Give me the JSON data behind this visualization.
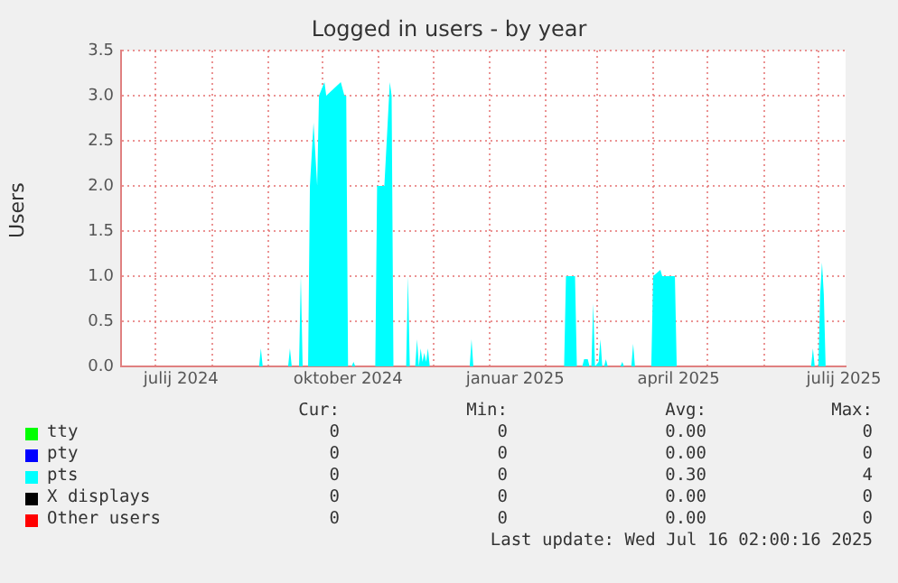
{
  "chart_data": {
    "type": "area",
    "title": "Logged in users - by year",
    "ylabel": "Users",
    "xlim": [
      "2024-06-12",
      "2025-07-16"
    ],
    "xticks": [
      {
        "value": "2024-07-01",
        "label": null
      },
      {
        "value": "2024-07-15",
        "label": "julij 2024"
      },
      {
        "value": "2024-08-01",
        "label": null
      },
      {
        "value": "2024-09-01",
        "label": null
      },
      {
        "value": "2024-10-01",
        "label": null
      },
      {
        "value": "2024-10-15",
        "label": "oktober 2024"
      },
      {
        "value": "2024-11-01",
        "label": null
      },
      {
        "value": "2024-12-01",
        "label": null
      },
      {
        "value": "2025-01-01",
        "label": null
      },
      {
        "value": "2025-01-15",
        "label": "januar 2025"
      },
      {
        "value": "2025-02-01",
        "label": null
      },
      {
        "value": "2025-03-01",
        "label": null
      },
      {
        "value": "2025-04-01",
        "label": null
      },
      {
        "value": "2025-04-15",
        "label": "april 2025"
      },
      {
        "value": "2025-05-01",
        "label": null
      },
      {
        "value": "2025-06-01",
        "label": null
      },
      {
        "value": "2025-07-01",
        "label": null
      },
      {
        "value": "2025-07-15",
        "label": "julij 2025"
      }
    ],
    "ylim": [
      0,
      3.5
    ],
    "yticks": [
      {
        "value": 0,
        "label": "0.0"
      },
      {
        "value": 0.5,
        "label": "0.5"
      },
      {
        "value": 1,
        "label": "1.0"
      },
      {
        "value": 1.5,
        "label": "1.5"
      },
      {
        "value": 2,
        "label": "2.0"
      },
      {
        "value": 2.5,
        "label": "2.5"
      },
      {
        "value": 3,
        "label": "3.0"
      },
      {
        "value": 3.5,
        "label": "3.5"
      }
    ],
    "grid": true,
    "legend": "bottom",
    "series": [
      {
        "name": "tty",
        "color": "#00ff00"
      },
      {
        "name": "pty",
        "color": "#0000ff"
      },
      {
        "name": "pts",
        "color": "#00ffff",
        "x": [
          "2024-06-12",
          "2024-08-27",
          "2024-08-28",
          "2024-08-29",
          "2024-09-12",
          "2024-09-13",
          "2024-09-14",
          "2024-09-18",
          "2024-09-19",
          "2024-09-20",
          "2024-09-23",
          "2024-09-24",
          "2024-09-26",
          "2024-09-28",
          "2024-09-29",
          "2024-10-02",
          "2024-10-03",
          "2024-10-11",
          "2024-10-13",
          "2024-10-14",
          "2024-10-15",
          "2024-10-17",
          "2024-10-18",
          "2024-10-19",
          "2024-10-30",
          "2024-10-31",
          "2024-11-04",
          "2024-11-07",
          "2024-11-08",
          "2024-11-09",
          "2024-11-16",
          "2024-11-17",
          "2024-11-18",
          "2024-11-21",
          "2024-11-22",
          "2024-11-23",
          "2024-11-24",
          "2024-11-25",
          "2024-11-26",
          "2024-11-27",
          "2024-11-28",
          "2024-11-29",
          "2024-12-21",
          "2024-12-22",
          "2024-12-23",
          "2025-02-11",
          "2025-02-12",
          "2025-02-17",
          "2025-02-18",
          "2025-02-21",
          "2025-02-22",
          "2025-02-24",
          "2025-02-25",
          "2025-02-26",
          "2025-02-27",
          "2025-02-28",
          "2025-03-02",
          "2025-03-03",
          "2025-03-04",
          "2025-03-05",
          "2025-03-06",
          "2025-03-07",
          "2025-03-14",
          "2025-03-15",
          "2025-03-16",
          "2025-03-20",
          "2025-03-21",
          "2025-03-22",
          "2025-03-31",
          "2025-04-01",
          "2025-04-05",
          "2025-04-06",
          "2025-04-13",
          "2025-04-14",
          "2025-06-27",
          "2025-06-28",
          "2025-06-29",
          "2025-07-01",
          "2025-07-02",
          "2025-07-03",
          "2025-07-04",
          "2025-07-05",
          "2025-07-16"
        ],
        "values": [
          0,
          0,
          0.2,
          0,
          0,
          0.2,
          0,
          0,
          1.0,
          0,
          0,
          2.0,
          2.7,
          2.0,
          3.0,
          3.15,
          3.0,
          3.15,
          3.0,
          3.0,
          0,
          0,
          0.05,
          0,
          0,
          2.0,
          2.0,
          3.15,
          3.0,
          0,
          0,
          1.0,
          0,
          0,
          0.3,
          0,
          0.2,
          0.05,
          0.15,
          0.05,
          0.2,
          0,
          0,
          0.3,
          0,
          0,
          1.0,
          1.0,
          0,
          0,
          0.08,
          0.08,
          0,
          0,
          0.7,
          0,
          0.05,
          0.3,
          0,
          0,
          0.08,
          0,
          0,
          0.05,
          0,
          0,
          0.25,
          0,
          0,
          1.0,
          1.07,
          1.0,
          1.0,
          0,
          0,
          0.2,
          0,
          0,
          0.8,
          1.15,
          0.8,
          0,
          0
        ]
      },
      {
        "name": "X displays",
        "color": "#000000"
      },
      {
        "name": "Other users",
        "color": "#ff0000"
      }
    ],
    "annotations": [
      "Cur:",
      "Min:",
      "Avg:",
      "Max:",
      "0",
      "0",
      "0.00",
      "0",
      "0",
      "0",
      "0.00",
      "0",
      "0",
      "0",
      "0.30",
      "4",
      "0",
      "0",
      "0.00",
      "0",
      "0",
      "0",
      "0.00",
      "0",
      "Last update: Wed Jul 16 02:00:16 2025"
    ]
  }
}
